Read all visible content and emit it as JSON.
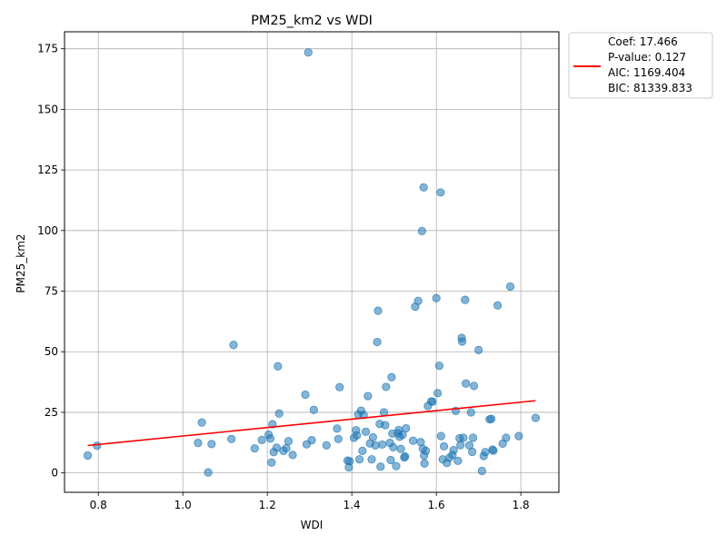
{
  "chart_data": {
    "type": "scatter",
    "title": "PM25_km2 vs WDI",
    "xlabel": "WDI",
    "ylabel": "PM25_km2",
    "xlim": [
      0.72,
      1.89
    ],
    "ylim": [
      -8,
      182
    ],
    "xticks": [
      0.8,
      1.0,
      1.2,
      1.4,
      1.6,
      1.8
    ],
    "xtick_labels": [
      "0.8",
      "1.0",
      "1.2",
      "1.4",
      "1.6",
      "1.8"
    ],
    "yticks": [
      0,
      25,
      50,
      75,
      100,
      125,
      150,
      175
    ],
    "ytick_labels": [
      "0",
      "25",
      "50",
      "75",
      "100",
      "125",
      "150",
      "175"
    ],
    "grid": true,
    "legend_position": "outside-right-top",
    "series": [
      {
        "kind": "scatter",
        "color": "#1f77b4",
        "points": [
          [
            0.775,
            7.2
          ],
          [
            0.797,
            11.2
          ],
          [
            1.036,
            12.4
          ],
          [
            1.045,
            20.8
          ],
          [
            1.06,
            0.2
          ],
          [
            1.068,
            11.9
          ],
          [
            1.115,
            14.0
          ],
          [
            1.12,
            52.8
          ],
          [
            1.17,
            10.1
          ],
          [
            1.187,
            13.6
          ],
          [
            1.203,
            15.8
          ],
          [
            1.207,
            14.2
          ],
          [
            1.21,
            4.3
          ],
          [
            1.212,
            20.1
          ],
          [
            1.215,
            8.6
          ],
          [
            1.222,
            10.4
          ],
          [
            1.225,
            44.0
          ],
          [
            1.228,
            24.5
          ],
          [
            1.238,
            9.1
          ],
          [
            1.245,
            10.2
          ],
          [
            1.25,
            13.1
          ],
          [
            1.26,
            7.4
          ],
          [
            1.29,
            32.3
          ],
          [
            1.293,
            11.8
          ],
          [
            1.297,
            173.5
          ],
          [
            1.305,
            13.5
          ],
          [
            1.31,
            26.0
          ],
          [
            1.34,
            11.4
          ],
          [
            1.365,
            18.3
          ],
          [
            1.368,
            14.0
          ],
          [
            1.371,
            35.4
          ],
          [
            1.39,
            5.1
          ],
          [
            1.393,
            2.3
          ],
          [
            1.395,
            4.8
          ],
          [
            1.405,
            14.5
          ],
          [
            1.41,
            17.6
          ],
          [
            1.412,
            15.5
          ],
          [
            1.415,
            24.1
          ],
          [
            1.418,
            5.6
          ],
          [
            1.422,
            25.7
          ],
          [
            1.425,
            9.1
          ],
          [
            1.428,
            23.9
          ],
          [
            1.433,
            17.0
          ],
          [
            1.438,
            31.7
          ],
          [
            1.443,
            12.2
          ],
          [
            1.447,
            5.6
          ],
          [
            1.45,
            14.7
          ],
          [
            1.456,
            11.4
          ],
          [
            1.46,
            54.0
          ],
          [
            1.462,
            66.9
          ],
          [
            1.466,
            20.2
          ],
          [
            1.468,
            2.6
          ],
          [
            1.472,
            11.7
          ],
          [
            1.476,
            25.0
          ],
          [
            1.479,
            19.7
          ],
          [
            1.481,
            35.5
          ],
          [
            1.49,
            12.4
          ],
          [
            1.492,
            5.3
          ],
          [
            1.494,
            39.5
          ],
          [
            1.496,
            16.2
          ],
          [
            1.498,
            10.6
          ],
          [
            1.505,
            2.8
          ],
          [
            1.509,
            16.3
          ],
          [
            1.511,
            17.7
          ],
          [
            1.513,
            14.9
          ],
          [
            1.516,
            9.9
          ],
          [
            1.52,
            15.7
          ],
          [
            1.524,
            6.4
          ],
          [
            1.526,
            6.8
          ],
          [
            1.528,
            18.4
          ],
          [
            1.545,
            13.3
          ],
          [
            1.55,
            68.6
          ],
          [
            1.557,
            71.0
          ],
          [
            1.563,
            12.7
          ],
          [
            1.566,
            99.8
          ],
          [
            1.568,
            10.0
          ],
          [
            1.57,
            117.8
          ],
          [
            1.571,
            7.2
          ],
          [
            1.572,
            3.9
          ],
          [
            1.575,
            9.1
          ],
          [
            1.58,
            27.6
          ],
          [
            1.588,
            29.5
          ],
          [
            1.591,
            29.4
          ],
          [
            1.6,
            72.1
          ],
          [
            1.603,
            32.9
          ],
          [
            1.607,
            44.2
          ],
          [
            1.61,
            115.7
          ],
          [
            1.611,
            15.2
          ],
          [
            1.615,
            5.6
          ],
          [
            1.618,
            11.0
          ],
          [
            1.625,
            4.1
          ],
          [
            1.631,
            6.3
          ],
          [
            1.638,
            7.4
          ],
          [
            1.641,
            9.4
          ],
          [
            1.646,
            25.6
          ],
          [
            1.651,
            5.0
          ],
          [
            1.655,
            14.3
          ],
          [
            1.657,
            11.5
          ],
          [
            1.66,
            55.7
          ],
          [
            1.661,
            54.2
          ],
          [
            1.664,
            14.5
          ],
          [
            1.668,
            71.4
          ],
          [
            1.67,
            36.9
          ],
          [
            1.678,
            11.4
          ],
          [
            1.682,
            25.0
          ],
          [
            1.685,
            8.7
          ],
          [
            1.687,
            14.5
          ],
          [
            1.689,
            35.9
          ],
          [
            1.7,
            50.7
          ],
          [
            1.708,
            0.8
          ],
          [
            1.712,
            7.0
          ],
          [
            1.716,
            8.6
          ],
          [
            1.726,
            22.1
          ],
          [
            1.73,
            22.3
          ],
          [
            1.733,
            9.6
          ],
          [
            1.735,
            9.2
          ],
          [
            1.745,
            69.1
          ],
          [
            1.757,
            12.1
          ],
          [
            1.765,
            14.5
          ],
          [
            1.775,
            76.9
          ],
          [
            1.795,
            15.2
          ],
          [
            1.835,
            22.7
          ]
        ]
      },
      {
        "kind": "line",
        "color": "#ff0000",
        "x": [
          0.775,
          1.835
        ],
        "y": [
          11.3,
          29.8
        ]
      }
    ],
    "legend": {
      "color": "#ff0000",
      "lines": [
        "Coef: 17.466",
        "P-value: 0.127",
        "AIC: 1169.404",
        "BIC: 81339.833"
      ]
    }
  }
}
